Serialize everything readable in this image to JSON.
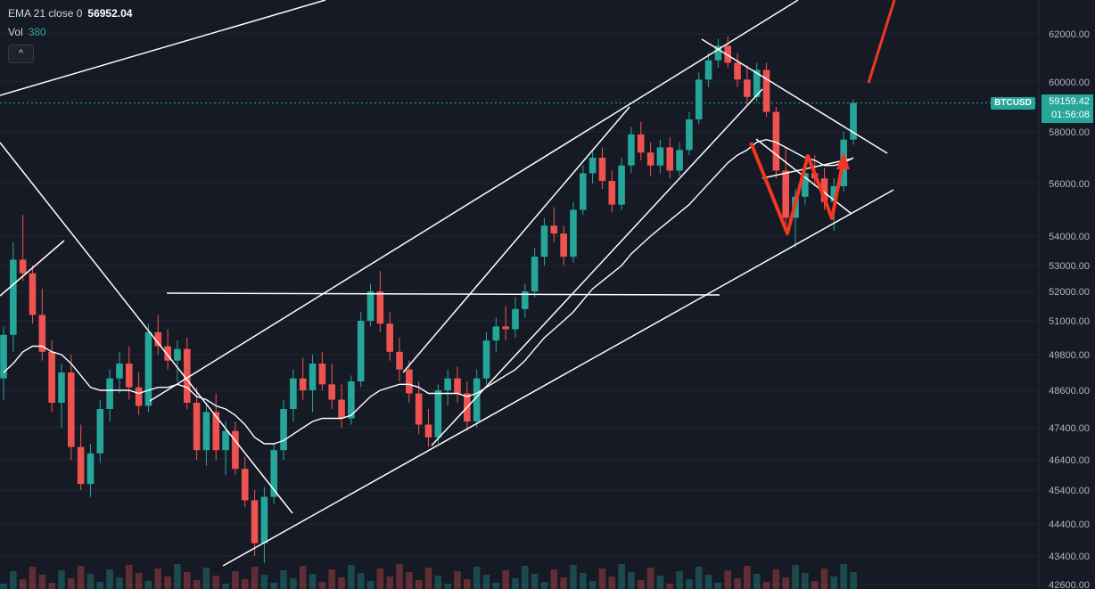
{
  "legend": {
    "ema_label": "EMA 21 close 0",
    "ema_value": "56952.04",
    "vol_label": "Vol",
    "vol_value": "380"
  },
  "collapse_glyph": "^",
  "ticker_badge": {
    "symbol": "BTCUSD",
    "price": "59159.42",
    "countdown": "01:56:08"
  },
  "colors": {
    "background": "#161a25",
    "up": "#26a69a",
    "down": "#ef5350",
    "drawing": "#ffffff",
    "annotation": "#f23622"
  },
  "chart_data": {
    "type": "candlestick",
    "price_axis_ticks": [
      62000,
      60000,
      58000,
      56000,
      54000,
      53000,
      52000,
      51000,
      49800,
      48600,
      47400,
      46400,
      45400,
      44400,
      43400,
      42600
    ],
    "last_price": 59159.42,
    "ylim": [
      42300,
      63300
    ],
    "ohlc_approx": [
      [
        49000,
        50800,
        48300,
        50500
      ],
      [
        50500,
        53800,
        49900,
        53200
      ],
      [
        53200,
        54800,
        52400,
        52700
      ],
      [
        52700,
        53000,
        50900,
        51200
      ],
      [
        51200,
        52100,
        49600,
        49900
      ],
      [
        49900,
        50300,
        47900,
        48200
      ],
      [
        48200,
        49500,
        47400,
        49200
      ],
      [
        49200,
        49800,
        46400,
        46800
      ],
      [
        46800,
        47500,
        45400,
        45600
      ],
      [
        45600,
        46900,
        45200,
        46600
      ],
      [
        46600,
        48300,
        46300,
        48000
      ],
      [
        48000,
        49300,
        47600,
        49000
      ],
      [
        49000,
        49900,
        48500,
        49500
      ],
      [
        49500,
        50100,
        48300,
        48700
      ],
      [
        48700,
        49200,
        47800,
        48100
      ],
      [
        48100,
        50900,
        47900,
        50600
      ],
      [
        50600,
        51200,
        49800,
        50100
      ],
      [
        50100,
        50700,
        49300,
        49600
      ],
      [
        49600,
        50300,
        48900,
        50000
      ],
      [
        50000,
        50400,
        48000,
        48200
      ],
      [
        48200,
        48700,
        46400,
        46700
      ],
      [
        46700,
        48200,
        46200,
        47900
      ],
      [
        47900,
        48500,
        46400,
        46700
      ],
      [
        46700,
        47600,
        45900,
        47300
      ],
      [
        47300,
        47600,
        45900,
        46100
      ],
      [
        46100,
        46500,
        44900,
        45100
      ],
      [
        45100,
        45400,
        43400,
        43800
      ],
      [
        43800,
        45500,
        43200,
        45200
      ],
      [
        45200,
        46900,
        45000,
        46700
      ],
      [
        46700,
        48300,
        46400,
        48000
      ],
      [
        48000,
        49300,
        47600,
        49000
      ],
      [
        49000,
        49700,
        48300,
        48600
      ],
      [
        48600,
        49800,
        47900,
        49500
      ],
      [
        49500,
        49900,
        48600,
        48800
      ],
      [
        48800,
        49500,
        48000,
        48300
      ],
      [
        48300,
        48800,
        47400,
        47700
      ],
      [
        47700,
        49100,
        47500,
        48900
      ],
      [
        48900,
        51300,
        48700,
        51000
      ],
      [
        51000,
        52300,
        50800,
        52000
      ],
      [
        52000,
        52800,
        50600,
        50900
      ],
      [
        50900,
        51300,
        49600,
        49900
      ],
      [
        49900,
        50400,
        48900,
        49300
      ],
      [
        49300,
        49600,
        48200,
        48500
      ],
      [
        48500,
        48900,
        47200,
        47500
      ],
      [
        47500,
        48000,
        46800,
        47100
      ],
      [
        47100,
        48800,
        46900,
        48600
      ],
      [
        48600,
        49300,
        48100,
        49000
      ],
      [
        49000,
        49400,
        48200,
        48500
      ],
      [
        48500,
        48900,
        47300,
        47600
      ],
      [
        47600,
        49300,
        47400,
        49000
      ],
      [
        49000,
        50600,
        48800,
        50300
      ],
      [
        50300,
        51100,
        49900,
        50800
      ],
      [
        50800,
        51500,
        50300,
        50700
      ],
      [
        50700,
        51800,
        50400,
        51400
      ],
      [
        51400,
        52300,
        51100,
        52000
      ],
      [
        52000,
        53600,
        51800,
        53300
      ],
      [
        53300,
        54700,
        53000,
        54400
      ],
      [
        54400,
        55100,
        53800,
        54100
      ],
      [
        54100,
        54400,
        53000,
        53300
      ],
      [
        53300,
        55300,
        53100,
        55000
      ],
      [
        55000,
        56700,
        54800,
        56400
      ],
      [
        56400,
        57300,
        56000,
        57000
      ],
      [
        57000,
        57400,
        55800,
        56100
      ],
      [
        56100,
        56500,
        54900,
        55200
      ],
      [
        55200,
        57000,
        55000,
        56700
      ],
      [
        56700,
        58200,
        56400,
        57900
      ],
      [
        57900,
        58400,
        56900,
        57200
      ],
      [
        57200,
        57600,
        56300,
        56700
      ],
      [
        56700,
        57700,
        56400,
        57400
      ],
      [
        57400,
        57800,
        56200,
        56500
      ],
      [
        56500,
        57600,
        56300,
        57300
      ],
      [
        57300,
        58800,
        57100,
        58500
      ],
      [
        58500,
        60400,
        58300,
        60100
      ],
      [
        60100,
        61200,
        59800,
        60900
      ],
      [
        60900,
        61800,
        60600,
        61500
      ],
      [
        61500,
        61900,
        60600,
        60800
      ],
      [
        60800,
        61200,
        59800,
        60100
      ],
      [
        60100,
        60700,
        59100,
        59400
      ],
      [
        59400,
        60800,
        59200,
        60500
      ],
      [
        60500,
        60800,
        58600,
        58800
      ],
      [
        58800,
        59000,
        56200,
        56500
      ],
      [
        56500,
        57400,
        54300,
        54700
      ],
      [
        54700,
        55800,
        53600,
        55500
      ],
      [
        55500,
        56700,
        55200,
        56400
      ],
      [
        56400,
        57100,
        55900,
        56200
      ],
      [
        56200,
        56600,
        55000,
        55300
      ],
      [
        55300,
        56200,
        54200,
        55900
      ],
      [
        55900,
        58000,
        55700,
        57700
      ],
      [
        57700,
        59300,
        57500,
        59159
      ]
    ],
    "ema21_approx": [
      49200,
      49500,
      49900,
      50100,
      50100,
      49900,
      49800,
      49500,
      49100,
      48700,
      48600,
      48600,
      48600,
      48600,
      48500,
      48600,
      48700,
      48700,
      48800,
      48700,
      48400,
      48300,
      48100,
      48000,
      47800,
      47500,
      47100,
      46900,
      46900,
      47000,
      47200,
      47400,
      47600,
      47700,
      47700,
      47700,
      47800,
      48100,
      48400,
      48600,
      48700,
      48800,
      48800,
      48700,
      48500,
      48500,
      48500,
      48500,
      48400,
      48500,
      48700,
      48900,
      49100,
      49300,
      49600,
      50000,
      50400,
      50700,
      51000,
      51300,
      51700,
      52100,
      52400,
      52700,
      53000,
      53400,
      53700,
      54000,
      54300,
      54600,
      54900,
      55200,
      55600,
      56000,
      56400,
      56800,
      57100,
      57300,
      57600,
      57700,
      57600,
      57400,
      57200,
      57000,
      56900,
      56700,
      56700,
      56800,
      57000
    ]
  }
}
